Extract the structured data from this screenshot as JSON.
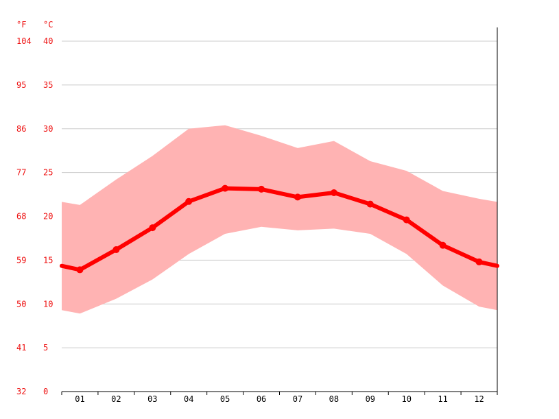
{
  "chart_data": {
    "type": "line",
    "units": {
      "fahrenheit": "°F",
      "celsius": "°C"
    },
    "y_ticks_c": [
      "40",
      "35",
      "30",
      "25",
      "20",
      "15",
      "10",
      "5",
      "0"
    ],
    "y_ticks_f": [
      "104",
      "95",
      "86",
      "77",
      "68",
      "59",
      "50",
      "41",
      "32"
    ],
    "ylim_c": [
      0,
      40
    ],
    "categories": [
      "01",
      "02",
      "03",
      "04",
      "05",
      "06",
      "07",
      "08",
      "09",
      "10",
      "11",
      "12"
    ],
    "series": [
      {
        "values": [
          13.9,
          16.2,
          18.7,
          21.7,
          23.2,
          23.1,
          22.2,
          22.7,
          21.4,
          19.6,
          16.7,
          14.8
        ]
      }
    ],
    "band": {
      "max": [
        21.3,
        24.2,
        26.9,
        30.0,
        30.4,
        29.2,
        27.8,
        28.6,
        26.3,
        25.2,
        22.9,
        22.0
      ],
      "min": [
        8.9,
        10.6,
        12.8,
        15.7,
        18.0,
        18.8,
        18.4,
        18.6,
        18.0,
        15.7,
        12.1,
        9.7
      ]
    },
    "grid": true,
    "colors": {
      "line": "#ff0000",
      "band": "#ffb3b3",
      "grid": "#cccccc",
      "tick_text": "#ee1111"
    }
  }
}
